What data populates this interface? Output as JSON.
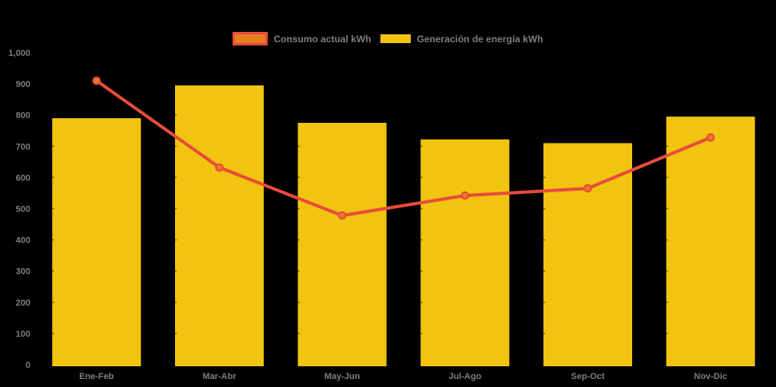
{
  "background": "#000000",
  "text_color": "#7D7D7D",
  "legend": {
    "items": [
      {
        "id": "consumo",
        "label": "Consumo actual kWh",
        "fill": "#E67E22",
        "border": "#E74C3C"
      },
      {
        "id": "generacion",
        "label": "Generación de energía kWh",
        "fill": "#F1C40F",
        "border": ""
      }
    ]
  },
  "chart_data": {
    "type": "bar+line",
    "categories": [
      "Ene-Feb",
      "Mar-Abr",
      "May-Jun",
      "Jul-Ago",
      "Sep-Oct",
      "Nov-Dic"
    ],
    "series": [
      {
        "name": "Generación de energía kWh",
        "type": "bar",
        "color": "#F1C40F",
        "values": [
          790,
          895,
          775,
          722,
          710,
          795
        ]
      },
      {
        "name": "Consumo actual kWh",
        "type": "line",
        "color": "#E74C3C",
        "marker_fill": "#E67E22",
        "values": [
          910,
          632,
          478,
          542,
          565,
          728
        ]
      }
    ],
    "ylim": [
      0,
      1000
    ],
    "y_ticks": [
      {
        "value": 0,
        "label": "0"
      },
      {
        "value": 100,
        "label": "100"
      },
      {
        "value": 200,
        "label": "200"
      },
      {
        "value": 300,
        "label": "300"
      },
      {
        "value": 400,
        "label": "400"
      },
      {
        "value": 500,
        "label": "500"
      },
      {
        "value": 600,
        "label": "600"
      },
      {
        "value": 700,
        "label": "700"
      },
      {
        "value": 800,
        "label": "800"
      },
      {
        "value": 900,
        "label": "900"
      },
      {
        "value": 1000,
        "label": "1,000"
      }
    ],
    "grid": false,
    "legend_position": "top",
    "title": "",
    "xlabel": "",
    "ylabel": ""
  }
}
